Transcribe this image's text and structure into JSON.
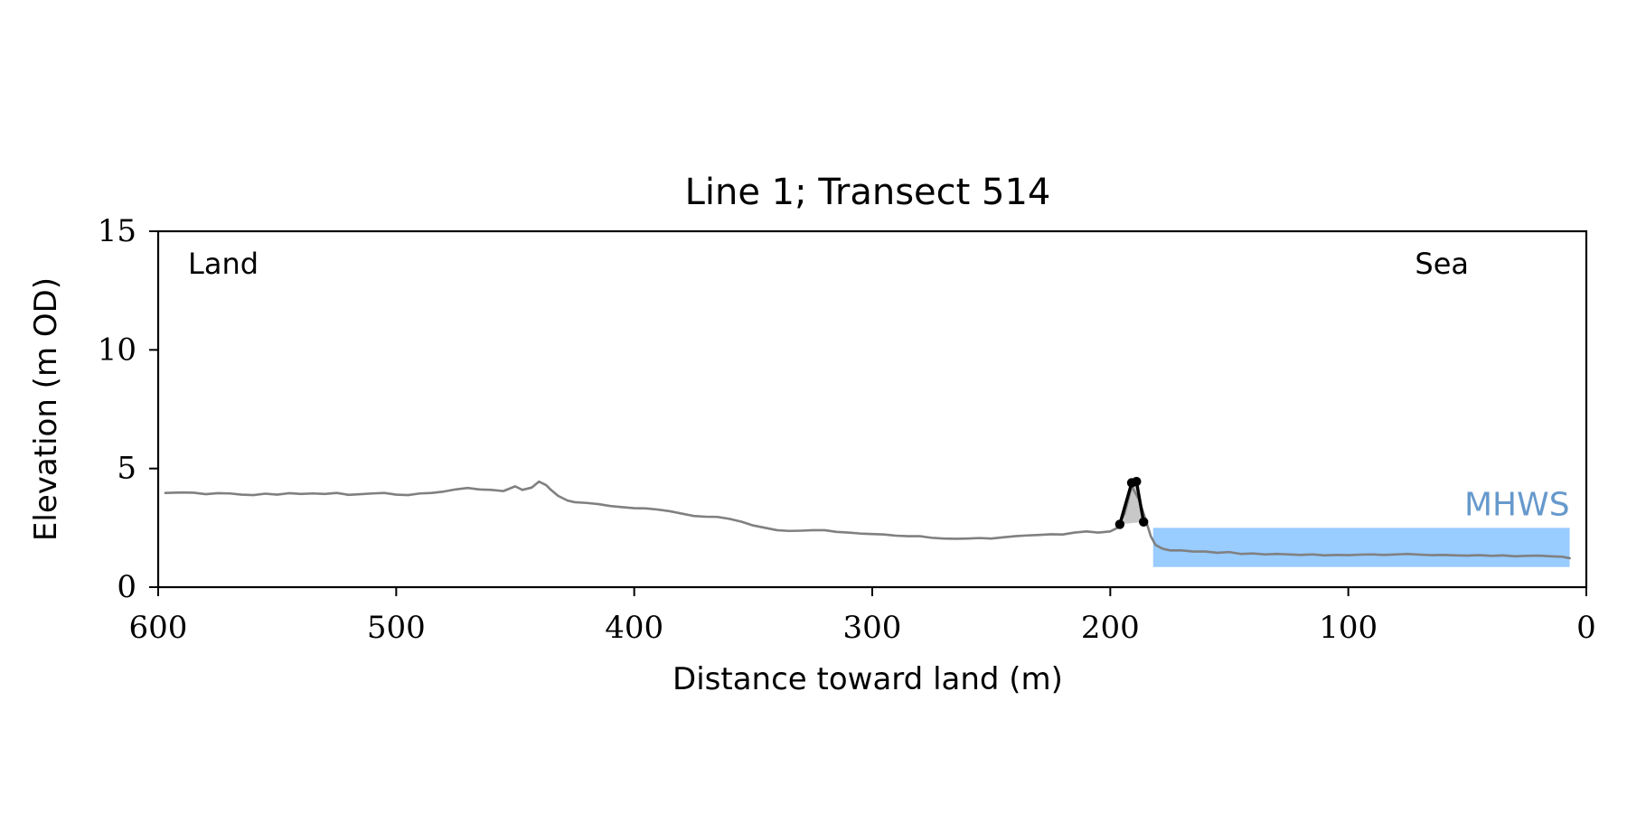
{
  "chart_data": {
    "type": "line",
    "title": "Line 1; Transect 514",
    "xlabel": "Distance toward land (m)",
    "ylabel": "Elevation (m OD)",
    "xlim": [
      600,
      0
    ],
    "ylim": [
      0,
      15
    ],
    "x_ticks": [
      600,
      500,
      400,
      300,
      200,
      100,
      0
    ],
    "y_ticks": [
      0,
      5,
      10,
      15
    ],
    "grid": false,
    "annotations": {
      "land_label": "Land",
      "sea_label": "Sea",
      "mhws_label": "MHWS"
    },
    "mhws": {
      "level": 2.5,
      "x_start": 182,
      "x_end": 7,
      "color": "#99CCFF",
      "label_color": "#6699CC"
    },
    "profile": {
      "color": "#808080",
      "x": [
        597,
        590,
        585,
        580,
        575,
        570,
        565,
        560,
        555,
        550,
        545,
        540,
        535,
        530,
        525,
        520,
        515,
        510,
        505,
        500,
        495,
        490,
        485,
        480,
        475,
        470,
        465,
        460,
        455,
        450,
        447,
        443,
        440,
        437,
        435,
        432,
        428,
        425,
        420,
        415,
        410,
        405,
        400,
        395,
        390,
        385,
        380,
        375,
        370,
        365,
        360,
        355,
        350,
        345,
        340,
        335,
        330,
        325,
        320,
        315,
        310,
        305,
        300,
        295,
        290,
        285,
        280,
        275,
        270,
        265,
        260,
        255,
        250,
        245,
        240,
        235,
        230,
        225,
        220,
        215,
        210,
        205,
        200,
        197,
        194,
        191,
        188,
        185,
        183,
        181,
        178,
        175,
        170,
        165,
        160,
        155,
        150,
        145,
        140,
        135,
        130,
        125,
        120,
        115,
        110,
        105,
        100,
        95,
        90,
        85,
        80,
        75,
        70,
        65,
        60,
        55,
        50,
        45,
        40,
        35,
        30,
        25,
        20,
        15,
        10,
        7
      ],
      "y": [
        3.97,
        3.99,
        3.98,
        3.92,
        3.96,
        3.95,
        3.9,
        3.88,
        3.94,
        3.9,
        3.96,
        3.93,
        3.95,
        3.93,
        3.97,
        3.89,
        3.92,
        3.95,
        3.97,
        3.9,
        3.88,
        3.95,
        3.97,
        4.03,
        4.12,
        4.18,
        4.12,
        4.1,
        4.05,
        4.25,
        4.1,
        4.2,
        4.45,
        4.3,
        4.1,
        3.85,
        3.65,
        3.58,
        3.55,
        3.5,
        3.42,
        3.37,
        3.33,
        3.32,
        3.27,
        3.2,
        3.1,
        3.0,
        2.97,
        2.96,
        2.88,
        2.76,
        2.6,
        2.5,
        2.4,
        2.37,
        2.38,
        2.4,
        2.4,
        2.33,
        2.3,
        2.26,
        2.24,
        2.22,
        2.17,
        2.15,
        2.15,
        2.08,
        2.05,
        2.04,
        2.05,
        2.07,
        2.05,
        2.1,
        2.15,
        2.18,
        2.2,
        2.23,
        2.22,
        2.3,
        2.35,
        2.3,
        2.35,
        2.5,
        3.1,
        4.25,
        3.7,
        2.8,
        2.15,
        1.78,
        1.62,
        1.55,
        1.55,
        1.5,
        1.5,
        1.45,
        1.48,
        1.4,
        1.42,
        1.38,
        1.4,
        1.38,
        1.36,
        1.38,
        1.34,
        1.36,
        1.35,
        1.37,
        1.38,
        1.36,
        1.38,
        1.4,
        1.37,
        1.35,
        1.36,
        1.34,
        1.33,
        1.35,
        1.32,
        1.34,
        1.3,
        1.32,
        1.33,
        1.3,
        1.28,
        1.22
      ]
    },
    "dune": {
      "stroke_color": "#000000",
      "fill_color": "#C8C8C8",
      "x": [
        196,
        191,
        189,
        186
      ],
      "y": [
        2.65,
        4.4,
        4.45,
        2.75
      ]
    }
  }
}
